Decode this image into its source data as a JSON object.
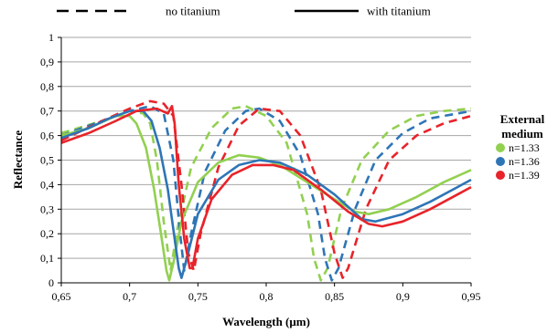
{
  "chart_data": {
    "type": "line",
    "xlabel": "Wavelength (μm)",
    "ylabel": "Reflectance",
    "xlim": [
      0.65,
      0.95
    ],
    "ylim": [
      0,
      1
    ],
    "x_ticks": [
      "0,65",
      "0,7",
      "0,75",
      "0,8",
      "0,85",
      "0,9",
      "0,95"
    ],
    "y_ticks": [
      "0",
      "0,1",
      "0,2",
      "0,3",
      "0,4",
      "0,5",
      "0,6",
      "0,7",
      "0,8",
      "0,9",
      "1"
    ],
    "grid": "horizontal",
    "line_styles": [
      {
        "label": "no titanium",
        "style": "dashed"
      },
      {
        "label": "with titanium",
        "style": "solid"
      }
    ],
    "legend": {
      "title_line1": "External",
      "title_line2": "medium",
      "placement": "right",
      "entries": [
        {
          "label": "n=1.33",
          "color": "#92d050"
        },
        {
          "label": "n=1.36",
          "color": "#2e75b6"
        },
        {
          "label": "n=1.39",
          "color": "#e8232a"
        }
      ]
    },
    "series": [
      {
        "medium": "n=1.33",
        "titanium": false,
        "color": "#92d050",
        "style": "dashed",
        "points": [
          [
            0.65,
            0.61
          ],
          [
            0.68,
            0.66
          ],
          [
            0.7,
            0.7
          ],
          [
            0.71,
            0.69
          ],
          [
            0.715,
            0.65
          ],
          [
            0.72,
            0.5
          ],
          [
            0.725,
            0.25
          ],
          [
            0.73,
            0.05
          ],
          [
            0.735,
            0.22
          ],
          [
            0.745,
            0.47
          ],
          [
            0.76,
            0.63
          ],
          [
            0.775,
            0.71
          ],
          [
            0.785,
            0.72
          ],
          [
            0.8,
            0.68
          ],
          [
            0.815,
            0.57
          ],
          [
            0.83,
            0.28
          ],
          [
            0.835,
            0.1
          ],
          [
            0.84,
            0.01
          ],
          [
            0.845,
            0.06
          ],
          [
            0.855,
            0.3
          ],
          [
            0.87,
            0.5
          ],
          [
            0.89,
            0.62
          ],
          [
            0.91,
            0.68
          ],
          [
            0.93,
            0.7
          ],
          [
            0.95,
            0.71
          ]
        ]
      },
      {
        "medium": "n=1.36",
        "titanium": false,
        "color": "#2e75b6",
        "style": "dashed",
        "points": [
          [
            0.65,
            0.6
          ],
          [
            0.68,
            0.66
          ],
          [
            0.7,
            0.7
          ],
          [
            0.715,
            0.72
          ],
          [
            0.725,
            0.69
          ],
          [
            0.732,
            0.5
          ],
          [
            0.737,
            0.2
          ],
          [
            0.74,
            0.05
          ],
          [
            0.745,
            0.2
          ],
          [
            0.755,
            0.45
          ],
          [
            0.77,
            0.62
          ],
          [
            0.785,
            0.7
          ],
          [
            0.795,
            0.71
          ],
          [
            0.81,
            0.66
          ],
          [
            0.825,
            0.52
          ],
          [
            0.838,
            0.28
          ],
          [
            0.843,
            0.1
          ],
          [
            0.848,
            0.01
          ],
          [
            0.853,
            0.06
          ],
          [
            0.865,
            0.3
          ],
          [
            0.88,
            0.5
          ],
          [
            0.9,
            0.61
          ],
          [
            0.92,
            0.67
          ],
          [
            0.95,
            0.7
          ]
        ]
      },
      {
        "medium": "n=1.39",
        "titanium": false,
        "color": "#e8232a",
        "style": "dashed",
        "points": [
          [
            0.65,
            0.58
          ],
          [
            0.68,
            0.66
          ],
          [
            0.7,
            0.71
          ],
          [
            0.715,
            0.74
          ],
          [
            0.725,
            0.73
          ],
          [
            0.732,
            0.68
          ],
          [
            0.738,
            0.4
          ],
          [
            0.743,
            0.12
          ],
          [
            0.747,
            0.05
          ],
          [
            0.752,
            0.2
          ],
          [
            0.765,
            0.47
          ],
          [
            0.78,
            0.64
          ],
          [
            0.795,
            0.71
          ],
          [
            0.81,
            0.7
          ],
          [
            0.825,
            0.6
          ],
          [
            0.84,
            0.38
          ],
          [
            0.85,
            0.12
          ],
          [
            0.856,
            0.02
          ],
          [
            0.86,
            0.06
          ],
          [
            0.873,
            0.3
          ],
          [
            0.89,
            0.5
          ],
          [
            0.91,
            0.6
          ],
          [
            0.93,
            0.65
          ],
          [
            0.95,
            0.68
          ]
        ]
      },
      {
        "medium": "n=1.33",
        "titanium": true,
        "color": "#92d050",
        "style": "solid",
        "points": [
          [
            0.65,
            0.6
          ],
          [
            0.67,
            0.63
          ],
          [
            0.69,
            0.68
          ],
          [
            0.7,
            0.68
          ],
          [
            0.705,
            0.65
          ],
          [
            0.712,
            0.55
          ],
          [
            0.718,
            0.38
          ],
          [
            0.723,
            0.2
          ],
          [
            0.727,
            0.05
          ],
          [
            0.729,
            0.01
          ],
          [
            0.732,
            0.08
          ],
          [
            0.738,
            0.25
          ],
          [
            0.75,
            0.41
          ],
          [
            0.765,
            0.49
          ],
          [
            0.78,
            0.52
          ],
          [
            0.795,
            0.51
          ],
          [
            0.81,
            0.48
          ],
          [
            0.83,
            0.41
          ],
          [
            0.85,
            0.34
          ],
          [
            0.865,
            0.29
          ],
          [
            0.875,
            0.28
          ],
          [
            0.89,
            0.3
          ],
          [
            0.91,
            0.35
          ],
          [
            0.93,
            0.41
          ],
          [
            0.95,
            0.46
          ]
        ]
      },
      {
        "medium": "n=1.36",
        "titanium": true,
        "color": "#2e75b6",
        "style": "solid",
        "points": [
          [
            0.65,
            0.59
          ],
          [
            0.67,
            0.63
          ],
          [
            0.685,
            0.67
          ],
          [
            0.7,
            0.7
          ],
          [
            0.71,
            0.7
          ],
          [
            0.716,
            0.66
          ],
          [
            0.722,
            0.55
          ],
          [
            0.728,
            0.38
          ],
          [
            0.733,
            0.18
          ],
          [
            0.736,
            0.06
          ],
          [
            0.738,
            0.02
          ],
          [
            0.741,
            0.08
          ],
          [
            0.75,
            0.28
          ],
          [
            0.765,
            0.42
          ],
          [
            0.78,
            0.48
          ],
          [
            0.795,
            0.5
          ],
          [
            0.81,
            0.49
          ],
          [
            0.83,
            0.44
          ],
          [
            0.85,
            0.36
          ],
          [
            0.87,
            0.26
          ],
          [
            0.88,
            0.25
          ],
          [
            0.9,
            0.28
          ],
          [
            0.92,
            0.33
          ],
          [
            0.94,
            0.39
          ],
          [
            0.95,
            0.42
          ]
        ]
      },
      {
        "medium": "n=1.39",
        "titanium": true,
        "color": "#e8232a",
        "style": "solid",
        "points": [
          [
            0.65,
            0.57
          ],
          [
            0.67,
            0.61
          ],
          [
            0.69,
            0.66
          ],
          [
            0.705,
            0.7
          ],
          [
            0.72,
            0.71
          ],
          [
            0.728,
            0.69
          ],
          [
            0.731,
            0.72
          ],
          [
            0.733,
            0.65
          ],
          [
            0.736,
            0.4
          ],
          [
            0.74,
            0.18
          ],
          [
            0.744,
            0.06
          ],
          [
            0.746,
            0.06
          ],
          [
            0.75,
            0.18
          ],
          [
            0.76,
            0.34
          ],
          [
            0.775,
            0.44
          ],
          [
            0.79,
            0.48
          ],
          [
            0.805,
            0.48
          ],
          [
            0.82,
            0.46
          ],
          [
            0.84,
            0.38
          ],
          [
            0.86,
            0.29
          ],
          [
            0.875,
            0.24
          ],
          [
            0.885,
            0.23
          ],
          [
            0.9,
            0.25
          ],
          [
            0.92,
            0.3
          ],
          [
            0.94,
            0.36
          ],
          [
            0.95,
            0.39
          ]
        ]
      }
    ]
  }
}
